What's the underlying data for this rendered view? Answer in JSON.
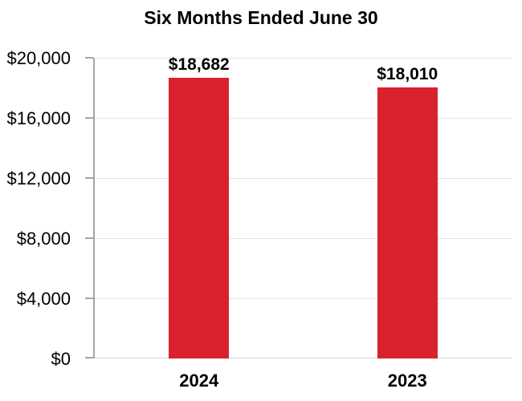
{
  "page": {
    "background": "#ffffff"
  },
  "chart_data": {
    "type": "bar",
    "title": "Six Months Ended June 30",
    "categories": [
      "2024",
      "2023"
    ],
    "values": [
      18682,
      18010
    ],
    "value_labels": [
      "$18,682",
      "$18,010"
    ],
    "xlabel": "",
    "ylabel": "",
    "ylim": [
      0,
      20000
    ],
    "y_ticks": [
      0,
      4000,
      8000,
      12000,
      16000,
      20000
    ],
    "y_tick_labels": [
      "$0",
      "$4,000",
      "$8,000",
      "$12,000",
      "$16,000",
      "$20,000"
    ],
    "grid": true,
    "legend": "none",
    "bar_color": "#da222e",
    "axis_color": "#a6a6a6",
    "gridline_color": "#e2e2e2",
    "baseline_color": "#d6d6d6",
    "text_color": "#000000"
  }
}
